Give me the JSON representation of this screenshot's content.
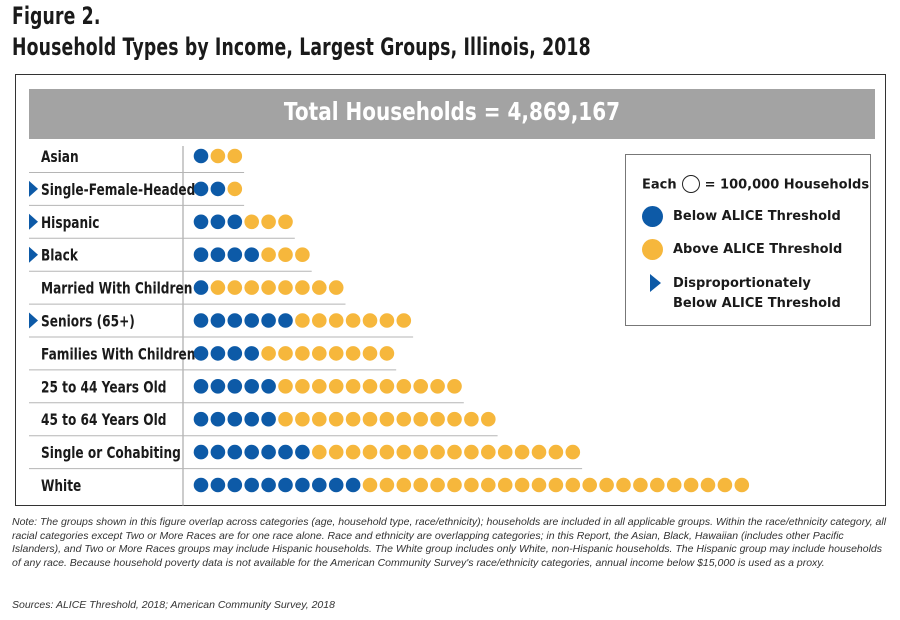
{
  "figure": {
    "label": "Figure 2.",
    "title": "Household Types by Income, Largest Groups, Illinois, 2018",
    "total_label": "Total Households = 4,869,167"
  },
  "legend": {
    "each_prefix": "Each",
    "each_suffix": "= 100,000 Households",
    "below": "Below ALICE Threshold",
    "above": "Above ALICE Threshold",
    "disproportionate": "Disproportionately Below ALICE Threshold"
  },
  "colors": {
    "below": "#0d5aa7",
    "above": "#f6b73c",
    "marker": "#0d5aa7",
    "banner": "#a3a3a3"
  },
  "chart_data": {
    "type": "pictograph",
    "unit": "100,000 Households",
    "title": "Household Types by Income, Largest Groups, Illinois, 2018",
    "categories": [
      "Asian",
      "Single-Female-Headed",
      "Hispanic",
      "Black",
      "Married With Children",
      "Seniors (65+)",
      "Families With Children",
      "25 to 44 Years Old",
      "45 to 64 Years Old",
      "Single or Cohabiting",
      "White"
    ],
    "series": [
      {
        "name": "Below ALICE Threshold",
        "values": [
          1,
          2,
          3,
          4,
          1,
          6,
          4,
          5,
          5,
          7,
          10
        ]
      },
      {
        "name": "Above ALICE Threshold",
        "values": [
          2,
          1,
          3,
          3,
          8,
          7,
          8,
          11,
          13,
          16,
          23
        ]
      }
    ],
    "disproportionately_below": [
      false,
      true,
      true,
      true,
      false,
      true,
      false,
      false,
      false,
      false,
      false
    ]
  },
  "note": "Note: The groups shown in this figure overlap across categories (age, household type, race/ethnicity); households are included in all applicable groups. Within the race/ethnicity category, all racial categories except Two or More Races are for one race alone. Race and ethnicity are overlapping categories; in this Report, the Asian, Black, Hawaiian (includes other Pacific Islanders), and Two or More Races groups may include Hispanic households. The White group includes only White, non-Hispanic households. The Hispanic group may include households of any race. Because household poverty data is not available for the American Community Survey's race/ethnicity categories, annual income below $15,000 is used as a proxy.",
  "sources": "Sources: ALICE Threshold, 2018; American Community Survey, 2018"
}
